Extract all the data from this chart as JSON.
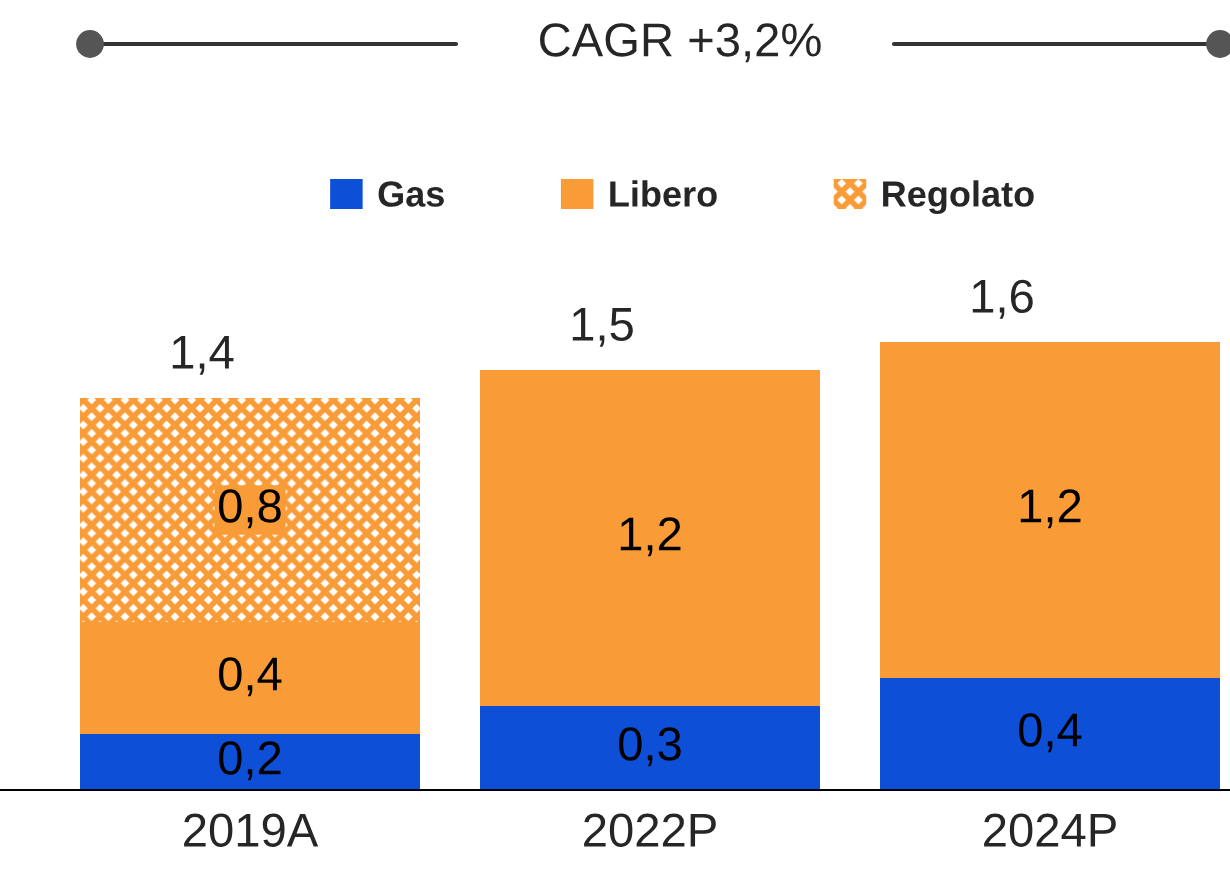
{
  "chart_data": {
    "type": "bar",
    "title": "CAGR +3,2%",
    "stacked": true,
    "legend": "top",
    "categories": [
      "2019A",
      "2022P",
      "2024P"
    ],
    "series": [
      {
        "name": "Gas",
        "color": "#0e4fd8",
        "values": [
          0.2,
          0.3,
          0.4
        ],
        "value_labels": [
          "0,2",
          "0,3",
          "0,4"
        ]
      },
      {
        "name": "Libero",
        "color": "#f99c38",
        "values": [
          0.4,
          1.2,
          1.2
        ],
        "value_labels": [
          "0,4",
          "1,2",
          "1,2"
        ]
      },
      {
        "name": "Regolato",
        "color": "#f99c38",
        "values": [
          0.8,
          0,
          0
        ],
        "value_labels": [
          "0,8",
          null,
          null
        ]
      }
    ],
    "totals": [
      "1,4",
      "1,5",
      "1,6"
    ]
  }
}
